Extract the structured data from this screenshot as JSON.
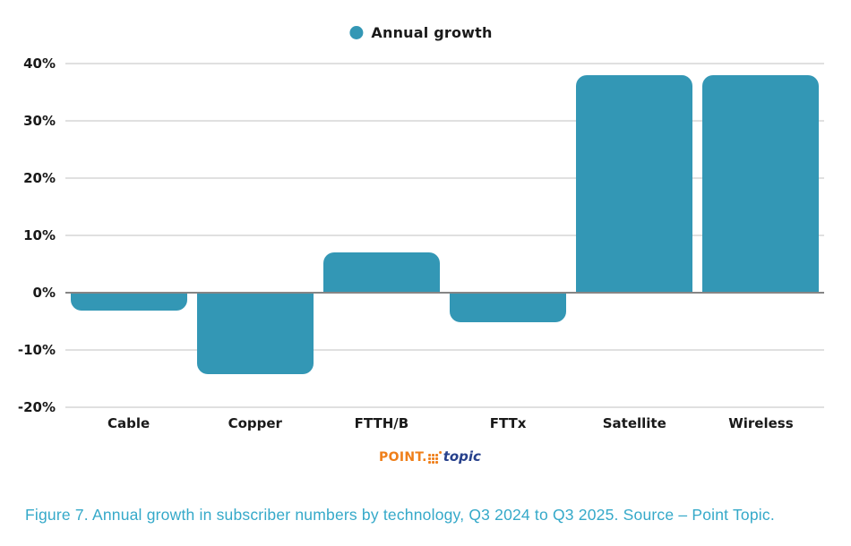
{
  "legend": {
    "label": "Annual growth"
  },
  "chart_data": {
    "type": "bar",
    "title": "",
    "series_name": "Annual growth",
    "categories": [
      "Cable",
      "Copper",
      "FTTH/B",
      "FTTx",
      "Satellite",
      "Wireless"
    ],
    "values": [
      -3,
      -14,
      7,
      -5,
      38,
      38
    ],
    "unit": "%",
    "xlabel": "",
    "ylabel": "",
    "ylim": [
      -20,
      40
    ],
    "yticks": [
      {
        "value": 40,
        "label": "40%"
      },
      {
        "value": 30,
        "label": "30%"
      },
      {
        "value": 20,
        "label": "20%"
      },
      {
        "value": 10,
        "label": "10%"
      },
      {
        "value": 0,
        "label": "0%"
      },
      {
        "value": -10,
        "label": "-10%"
      },
      {
        "value": -20,
        "label": "-20%"
      }
    ],
    "grid": "horizontal",
    "legend_position": "top-center",
    "bar_color": "#3397b5"
  },
  "logo": {
    "part1": "POINT.",
    "part2": "topic",
    "orange": "#ef7f1a",
    "blue": "#27418c"
  },
  "caption": {
    "text": "Figure 7. Annual growth in subscriber numbers by technology, Q3 2024 to Q3 2025. Source – Point Topic.",
    "color": "#35a9c9"
  }
}
